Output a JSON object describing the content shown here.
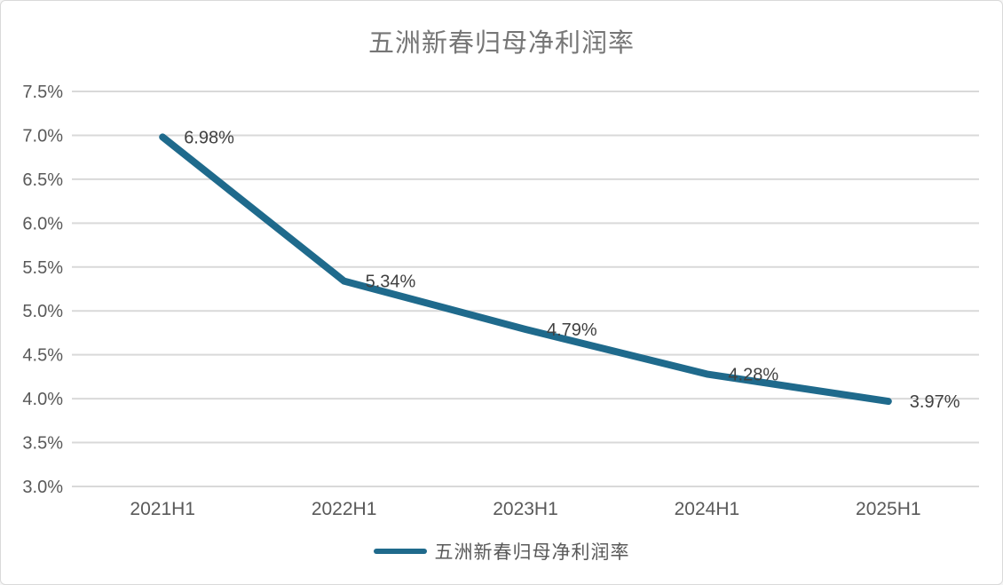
{
  "title": "五洲新春归母净利润率",
  "legend": {
    "label": "五洲新春归母净利润率"
  },
  "colors": {
    "line": "#1f6a8c",
    "grid": "#d9d9d9",
    "title_text": "#767676",
    "axis_text": "#595959",
    "data_label_text": "#404040",
    "background": "#ffffff"
  },
  "chart_data": {
    "type": "line",
    "title": "五洲新春归母净利润率",
    "categories": [
      "2021H1",
      "2022H1",
      "2023H1",
      "2024H1",
      "2025H1"
    ],
    "series": [
      {
        "name": "五洲新春归母净利润率",
        "values": [
          6.98,
          5.34,
          4.79,
          4.28,
          3.97
        ]
      }
    ],
    "data_labels": [
      "6.98%",
      "5.34%",
      "4.79%",
      "4.28%",
      "3.97%"
    ],
    "xlabel": "",
    "ylabel": "",
    "ylim": [
      3.0,
      7.5
    ],
    "ytick_step": 0.5,
    "ytick_labels": [
      "3.0%",
      "3.5%",
      "4.0%",
      "4.5%",
      "5.0%",
      "5.5%",
      "6.0%",
      "6.5%",
      "7.0%",
      "7.5%"
    ],
    "grid": true,
    "legend_position": "bottom"
  }
}
